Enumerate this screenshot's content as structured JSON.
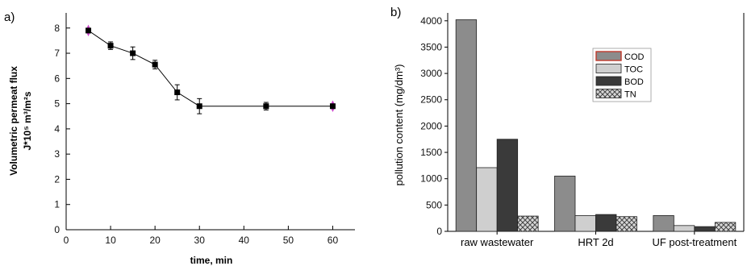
{
  "chart_data": [
    {
      "panel_label": "a)",
      "type": "line",
      "xlabel": "time, min",
      "ylabel_line1": "Volumetric permeat flux",
      "ylabel_line2": "J*10⁵ m³/m²s",
      "xlim": [
        0,
        65
      ],
      "ylim": [
        0,
        8.6
      ],
      "xticks": [
        0,
        10,
        20,
        30,
        40,
        50,
        60
      ],
      "yticks": [
        0,
        1,
        2,
        3,
        4,
        5,
        6,
        7,
        8
      ],
      "series": [
        {
          "x": [
            5,
            10,
            15,
            20,
            25,
            30,
            45,
            60
          ],
          "y": [
            7.9,
            7.3,
            7.0,
            6.55,
            5.45,
            4.9,
            4.9,
            4.9
          ],
          "err": [
            0.12,
            0.15,
            0.25,
            0.17,
            0.3,
            0.3,
            0.15,
            0.15
          ]
        }
      ],
      "highlighted_points_x": [
        5,
        60
      ],
      "marker_color": "#000000",
      "highlight_color": "#cc44cc",
      "grid": false
    },
    {
      "panel_label": "b)",
      "type": "bar",
      "xlabel": "",
      "ylabel": "pollution content (mg/dm³)",
      "ylim": [
        0,
        4150
      ],
      "yticks": [
        0,
        500,
        1000,
        1500,
        2000,
        2500,
        3000,
        3500,
        4000
      ],
      "categories": [
        "raw wastewater",
        "HRT 2d",
        "UF post-treatment"
      ],
      "series": [
        {
          "name": "COD",
          "values": [
            4020,
            1050,
            300
          ],
          "color": "#8c8c8c"
        },
        {
          "name": "TOC",
          "values": [
            1210,
            300,
            110
          ],
          "color": "#cfcfcf"
        },
        {
          "name": "BOD",
          "values": [
            1750,
            320,
            90
          ],
          "color": "#3a3a3a"
        },
        {
          "name": "TN",
          "values": [
            290,
            280,
            170
          ],
          "color": "crosshatch"
        }
      ],
      "legend_position": "top-right",
      "grid": false
    }
  ]
}
